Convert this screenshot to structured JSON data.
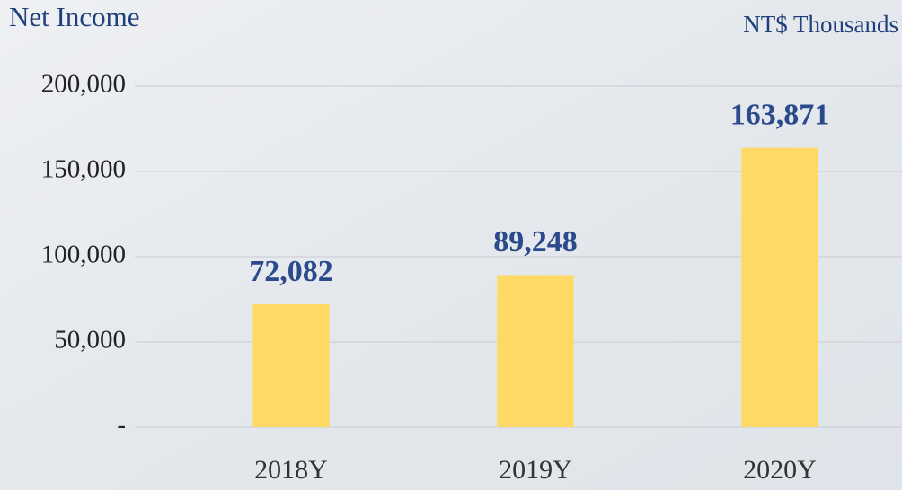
{
  "chart_data": {
    "type": "bar",
    "title": "Net Income",
    "subtitle": "NT$ Thousands",
    "categories": [
      "2018Y",
      "2019Y",
      "2020Y"
    ],
    "values": [
      72082,
      89248,
      163871
    ],
    "value_labels": [
      "72,082",
      "89,248",
      "163,871"
    ],
    "color": "#ffd966",
    "ylim": [
      0,
      200000
    ],
    "yticks": [
      {
        "value": 0,
        "label": "-"
      },
      {
        "value": 50000,
        "label": "50,000"
      },
      {
        "value": 100000,
        "label": "100,000"
      },
      {
        "value": 150000,
        "label": "150,000"
      },
      {
        "value": 200000,
        "label": "200,000"
      }
    ],
    "grid": true
  }
}
